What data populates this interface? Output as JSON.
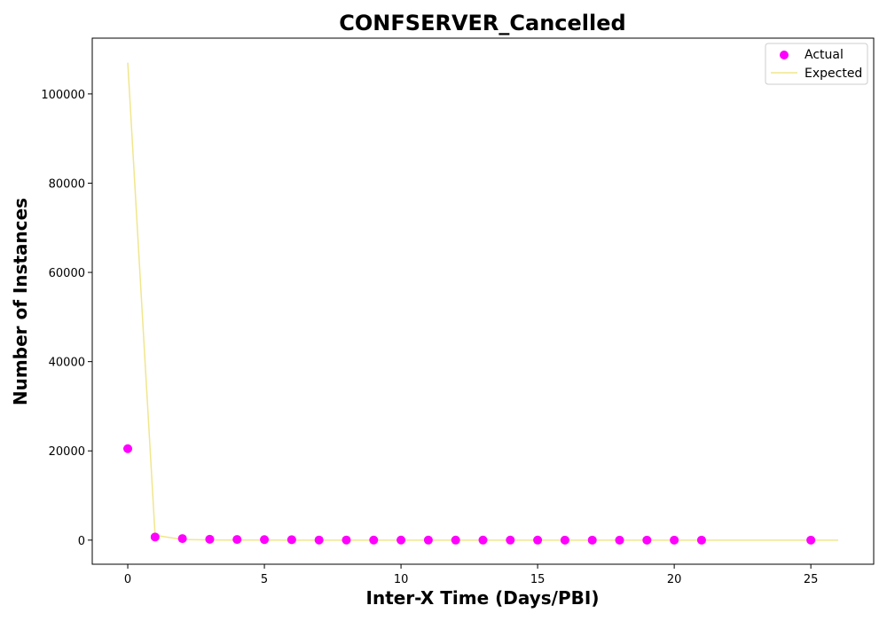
{
  "chart_data": {
    "type": "scatter",
    "title": "CONFSERVER_Cancelled",
    "xlabel": "Inter-X Time (Days/PBI)",
    "ylabel": "Number of Instances",
    "xlim": [
      -1.3,
      27.3
    ],
    "ylim": [
      -5400,
      112500
    ],
    "xticks": [
      0,
      5,
      10,
      15,
      20,
      25
    ],
    "yticks": [
      0,
      20000,
      40000,
      60000,
      80000,
      100000
    ],
    "grid": false,
    "legend_position": "top-right",
    "colors": {
      "actual": "#ff00ff",
      "expected": "#f0e68c"
    },
    "series": [
      {
        "name": "Actual",
        "kind": "scatter",
        "x": [
          0,
          1,
          2,
          3,
          4,
          5,
          6,
          7,
          8,
          9,
          10,
          11,
          12,
          13,
          14,
          15,
          16,
          17,
          18,
          19,
          20,
          21,
          25
        ],
        "y": [
          20500,
          700,
          350,
          200,
          150,
          120,
          100,
          30,
          25,
          20,
          15,
          12,
          10,
          8,
          7,
          6,
          5,
          4,
          3,
          3,
          2,
          2,
          1
        ]
      },
      {
        "name": "Expected",
        "kind": "line",
        "x": [
          0,
          1,
          2,
          3,
          4,
          5,
          6,
          7,
          8,
          9,
          10,
          11,
          12,
          13,
          14,
          15,
          16,
          17,
          18,
          19,
          20,
          21,
          22,
          23,
          24,
          25,
          26
        ],
        "y": [
          107000,
          1100,
          150,
          40,
          15,
          8,
          4,
          3,
          2,
          2,
          1,
          1,
          1,
          1,
          1,
          1,
          1,
          1,
          1,
          1,
          1,
          1,
          1,
          1,
          1,
          1,
          1
        ]
      }
    ]
  }
}
